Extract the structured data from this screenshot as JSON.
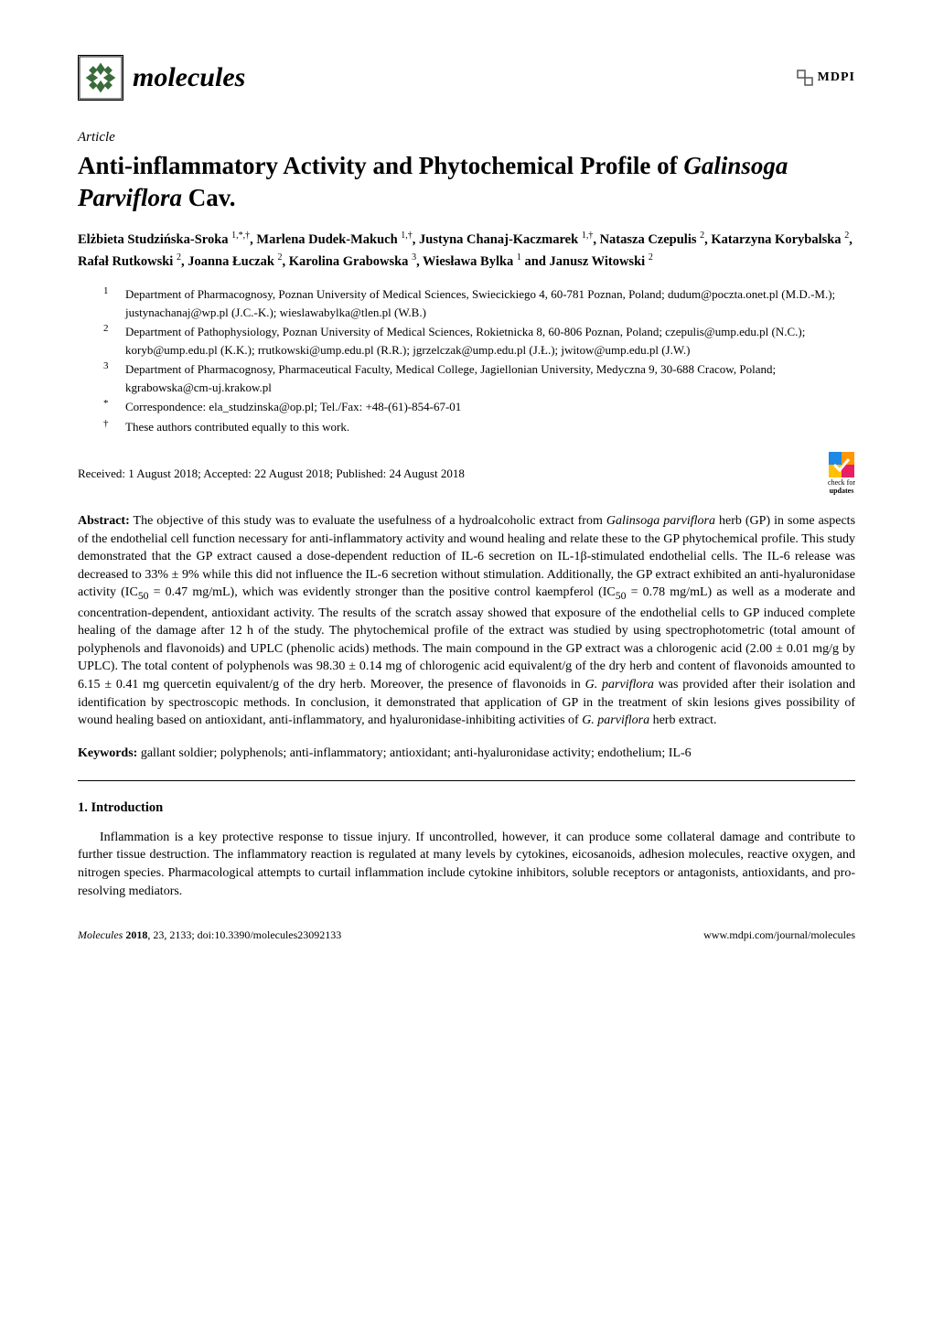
{
  "journal": {
    "icon_color": "#3a6b3a",
    "name": "molecules",
    "publisher": "MDPI"
  },
  "article": {
    "type": "Article",
    "title_prefix": "Anti-inflammatory Activity and Phytochemical Profile of ",
    "title_italic": "Galinsoga Parviflora",
    "title_suffix": " Cav.",
    "authors_html": "Elżbieta Studzińska-Sroka <sup>1,*,†</sup>, Marlena Dudek-Makuch <sup>1,†</sup>, Justyna Chanaj-Kaczmarek <sup>1,†</sup>, Natasza Czepulis <sup>2</sup>, Katarzyna Korybalska <sup>2</sup>, Rafał Rutkowski <sup>2</sup>, Joanna Łuczak <sup>2</sup>, Karolina Grabowska <sup>3</sup>, Wiesława Bylka <sup>1</sup> and Janusz Witowski <sup>2</sup>"
  },
  "affiliations": [
    {
      "marker": "1",
      "text": "Department of Pharmacognosy, Poznan University of Medical Sciences, Swiecickiego 4, 60-781 Poznan, Poland; dudum@poczta.onet.pl (M.D.-M.); justynachanaj@wp.pl (J.C.-K.); wieslawabylka@tlen.pl (W.B.)"
    },
    {
      "marker": "2",
      "text": "Department of Pathophysiology, Poznan University of Medical Sciences, Rokietnicka 8, 60-806 Poznan, Poland; czepulis@ump.edu.pl (N.C.); koryb@ump.edu.pl (K.K.); rrutkowski@ump.edu.pl (R.R.); jgrzelczak@ump.edu.pl (J.Ł.); jwitow@ump.edu.pl (J.W.)"
    },
    {
      "marker": "3",
      "text": "Department of Pharmacognosy, Pharmaceutical Faculty, Medical College, Jagiellonian University, Medyczna 9, 30-688 Cracow, Poland; kgrabowska@cm-uj.krakow.pl"
    },
    {
      "marker": "*",
      "text": "Correspondence: ela_studzinska@op.pl; Tel./Fax: +48-(61)-854-67-01"
    },
    {
      "marker": "†",
      "text": "These authors contributed equally to this work."
    }
  ],
  "dates": "Received: 1 August 2018; Accepted: 22 August 2018; Published: 24 August 2018",
  "check_updates": {
    "line1": "check for",
    "line2": "updates"
  },
  "abstract": {
    "label": "Abstract:",
    "text": " The objective of this study was to evaluate the usefulness of a hydroalcoholic extract from <i>Galinsoga parviflora</i> herb (GP) in some aspects of the endothelial cell function necessary for anti-inflammatory activity and wound healing and relate these to the GP phytochemical profile. This study demonstrated that the GP extract caused a dose-dependent reduction of IL-6 secretion on IL-1β-stimulated endothelial cells. The IL-6 release was decreased to 33% ± 9% while this did not influence the IL-6 secretion without stimulation. Additionally, the GP extract exhibited an anti-hyaluronidase activity (IC<sub>50</sub> = 0.47 mg/mL), which was evidently stronger than the positive control kaempferol (IC<sub>50</sub> = 0.78 mg/mL) as well as a moderate and concentration-dependent, antioxidant activity. The results of the scratch assay showed that exposure of the endothelial cells to GP induced complete healing of the damage after 12 h of the study. The phytochemical profile of the extract was studied by using spectrophotometric (total amount of polyphenols and flavonoids) and UPLC (phenolic acids) methods. The main compound in the GP extract was a chlorogenic acid (2.00 ± 0.01 mg/g by UPLC). The total content of polyphenols was 98.30 ± 0.14 mg of chlorogenic acid equivalent/g of the dry herb and content of flavonoids amounted to 6.15 ± 0.41 mg quercetin equivalent/g of the dry herb. Moreover, the presence of flavonoids in <i>G. parviflora</i> was provided after their isolation and identification by spectroscopic methods. In conclusion, it demonstrated that application of GP in the treatment of skin lesions gives possibility of wound healing based on antioxidant, anti-inflammatory, and hyaluronidase-inhibiting activities of <i>G. parviflora</i> herb extract."
  },
  "keywords": {
    "label": "Keywords:",
    "text": " gallant soldier; polyphenols; anti-inflammatory; antioxidant; anti-hyaluronidase activity; endothelium; IL-6"
  },
  "section1": {
    "heading": "1. Introduction",
    "body": "Inflammation is a key protective response to tissue injury. If uncontrolled, however, it can produce some collateral damage and contribute to further tissue destruction. The inflammatory reaction is regulated at many levels by cytokines, eicosanoids, adhesion molecules, reactive oxygen, and nitrogen species. Pharmacological attempts to curtail inflammation include cytokine inhibitors, soluble receptors or antagonists, antioxidants, and pro-resolving mediators."
  },
  "footer": {
    "left_italic": "Molecules ",
    "left_bold": "2018",
    "left_rest": ", 23, 2133; doi:10.3390/molecules23092133",
    "right": "www.mdpi.com/journal/molecules"
  },
  "colors": {
    "text": "#000000",
    "background": "#ffffff",
    "journal_icon": "#3a6b3a",
    "mdpi_icon": "#555555",
    "check_blue": "#1e88e5",
    "check_orange": "#ff9800",
    "check_yellow": "#ffc107",
    "check_pink": "#e91e63"
  }
}
